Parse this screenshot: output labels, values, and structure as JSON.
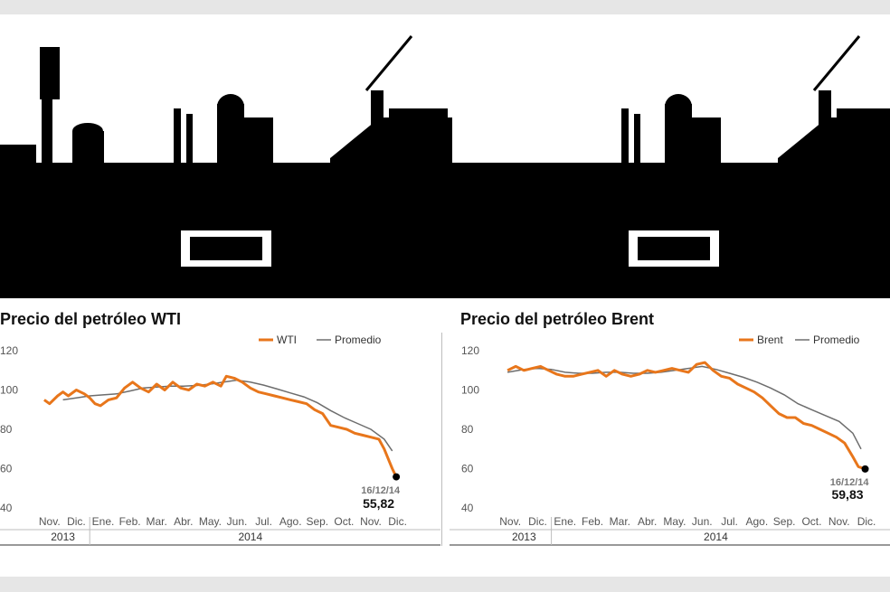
{
  "colors": {
    "series": "#e8761b",
    "average": "#6d6d6d",
    "axis_text": "#555555",
    "title": "#111111",
    "background_band": "#e6e6e6"
  },
  "illustration": "refinery-silhouette",
  "chart_data": [
    {
      "type": "line",
      "title": "Precio del petróleo WTI",
      "legend": {
        "placement": "top-right",
        "entries": [
          "WTI",
          "Promedio"
        ]
      },
      "ylim": [
        40,
        120
      ],
      "yticks": [
        40,
        60,
        80,
        100,
        120
      ],
      "months": [
        "Nov.",
        "Dic.",
        "Ene.",
        "Feb.",
        "Mar.",
        "Abr.",
        "May.",
        "Jun.",
        "Jul.",
        "Ago.",
        "Sep.",
        "Oct.",
        "Nov.",
        "Dic."
      ],
      "years": [
        {
          "label": "2013",
          "span": [
            0,
            2
          ]
        },
        {
          "label": "2014",
          "span": [
            2,
            14
          ]
        }
      ],
      "grid": false,
      "series": [
        {
          "name": "WTI",
          "x": [
            0.3,
            0.5,
            0.8,
            1.0,
            1.2,
            1.5,
            1.8,
            2.0,
            2.2,
            2.4,
            2.7,
            3.0,
            3.3,
            3.6,
            3.9,
            4.2,
            4.5,
            4.8,
            5.1,
            5.4,
            5.7,
            6.0,
            6.3,
            6.6,
            6.9,
            7.1,
            7.4,
            7.7,
            8.0,
            8.3,
            8.6,
            8.9,
            9.2,
            9.5,
            9.8,
            10.1,
            10.4,
            10.7,
            11.0,
            11.3,
            11.6,
            11.9,
            12.2,
            12.5,
            12.8,
            13.0,
            13.15,
            13.3,
            13.45
          ],
          "values": [
            95,
            93,
            97,
            99,
            97,
            100,
            98,
            96,
            93,
            92,
            95,
            96,
            101,
            104,
            101,
            99,
            103,
            100,
            104,
            101,
            100,
            103,
            102,
            104,
            102,
            107,
            106,
            104,
            101,
            99,
            98,
            97,
            96,
            95,
            94,
            93,
            90,
            88,
            82,
            81,
            80,
            78,
            77,
            76,
            75,
            70,
            65,
            60,
            55.82
          ]
        },
        {
          "name": "Promedio",
          "x": [
            1.0,
            1.5,
            2.0,
            2.5,
            3.0,
            3.5,
            4.0,
            4.5,
            5.0,
            5.5,
            6.0,
            6.5,
            7.0,
            7.5,
            8.0,
            8.5,
            9.0,
            9.5,
            10.0,
            10.5,
            11.0,
            11.5,
            12.0,
            12.5,
            13.0,
            13.3
          ],
          "values": [
            95,
            96,
            97,
            97.5,
            98,
            99.5,
            101,
            101.5,
            102,
            102,
            102.3,
            103,
            104,
            105,
            104,
            102.5,
            100.5,
            98.5,
            96.5,
            93.5,
            89.5,
            86,
            83,
            80,
            75,
            69
          ]
        }
      ],
      "annotation": {
        "date": "16/12/14",
        "value": "55,82"
      }
    },
    {
      "type": "line",
      "title": "Precio del petróleo Brent",
      "legend": {
        "placement": "top-right",
        "entries": [
          "Brent",
          "Promedio"
        ]
      },
      "ylim": [
        40,
        120
      ],
      "yticks": [
        40,
        60,
        80,
        100,
        120
      ],
      "months": [
        "Nov.",
        "Dic.",
        "Ene.",
        "Feb.",
        "Mar.",
        "Abr.",
        "May.",
        "Jun.",
        "Jul.",
        "Ago.",
        "Sep.",
        "Oct.",
        "Nov.",
        "Dic."
      ],
      "years": [
        {
          "label": "2013",
          "span": [
            0,
            2
          ]
        },
        {
          "label": "2014",
          "span": [
            2,
            14
          ]
        }
      ],
      "grid": false,
      "series": [
        {
          "name": "Brent",
          "x": [
            0.4,
            0.7,
            1.0,
            1.3,
            1.6,
            1.9,
            2.2,
            2.5,
            2.8,
            3.1,
            3.4,
            3.7,
            4.0,
            4.3,
            4.6,
            4.9,
            5.2,
            5.5,
            5.8,
            6.1,
            6.4,
            6.7,
            7.0,
            7.3,
            7.6,
            7.9,
            8.2,
            8.5,
            8.8,
            9.1,
            9.4,
            9.7,
            10.0,
            10.3,
            10.6,
            10.9,
            11.2,
            11.5,
            11.8,
            12.1,
            12.4,
            12.7,
            13.0,
            13.2,
            13.45
          ],
          "values": [
            110,
            112,
            110,
            111,
            112,
            110,
            108,
            107,
            107,
            108,
            109,
            110,
            107,
            110,
            108,
            107,
            108,
            110,
            109,
            110,
            111,
            110,
            109,
            113,
            114,
            110,
            107,
            106,
            103,
            101,
            99,
            96,
            92,
            88,
            86,
            86,
            83,
            82,
            80,
            78,
            76,
            73,
            66,
            61,
            59.83
          ]
        },
        {
          "name": "Promedio",
          "x": [
            0.4,
            1.0,
            1.5,
            2.0,
            2.5,
            3.0,
            3.5,
            4.0,
            4.5,
            5.0,
            5.5,
            6.0,
            6.5,
            7.0,
            7.5,
            8.0,
            8.5,
            9.0,
            9.5,
            10.0,
            10.5,
            11.0,
            11.5,
            12.0,
            12.5,
            13.0,
            13.3
          ],
          "values": [
            109,
            110.5,
            111,
            110.5,
            109,
            108.5,
            108.5,
            109,
            109,
            108.5,
            108.5,
            109,
            110,
            111,
            112,
            110.5,
            108.5,
            106.5,
            104,
            101,
            97.5,
            93,
            90,
            87,
            84,
            78,
            70
          ]
        }
      ],
      "annotation": {
        "date": "16/12/14",
        "value": "59,83"
      }
    }
  ]
}
